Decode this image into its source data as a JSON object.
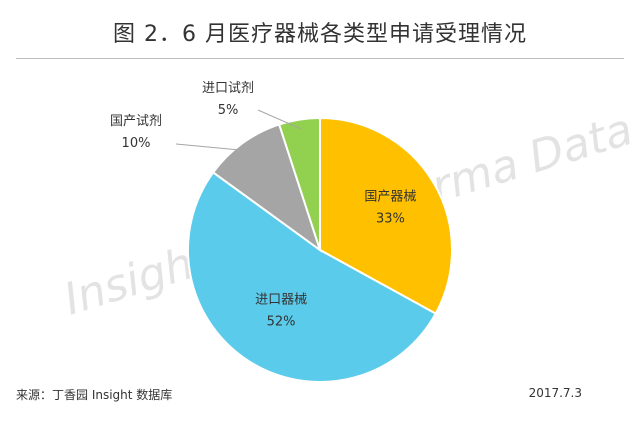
{
  "chart_data": {
    "type": "pie",
    "title": "图 2．6 月医疗器械各类型申请受理情况",
    "slices": [
      {
        "label": "国产器械",
        "value": 33,
        "value_label": "33%",
        "color": "#FFC000"
      },
      {
        "label": "进口器械",
        "value": 52,
        "value_label": "52%",
        "color": "#5BCBEB"
      },
      {
        "label": "国产试剂",
        "value": 10,
        "value_label": "10%",
        "color": "#A5A5A5"
      },
      {
        "label": "进口试剂",
        "value": 5,
        "value_label": "5%",
        "color": "#92D050"
      }
    ],
    "start_angle_deg": 0,
    "direction": "clockwise"
  },
  "watermark": "Insight China Pharma Data",
  "footer": {
    "source": "来源：丁香园 Insight 数据库",
    "date": "2017.7.3"
  }
}
